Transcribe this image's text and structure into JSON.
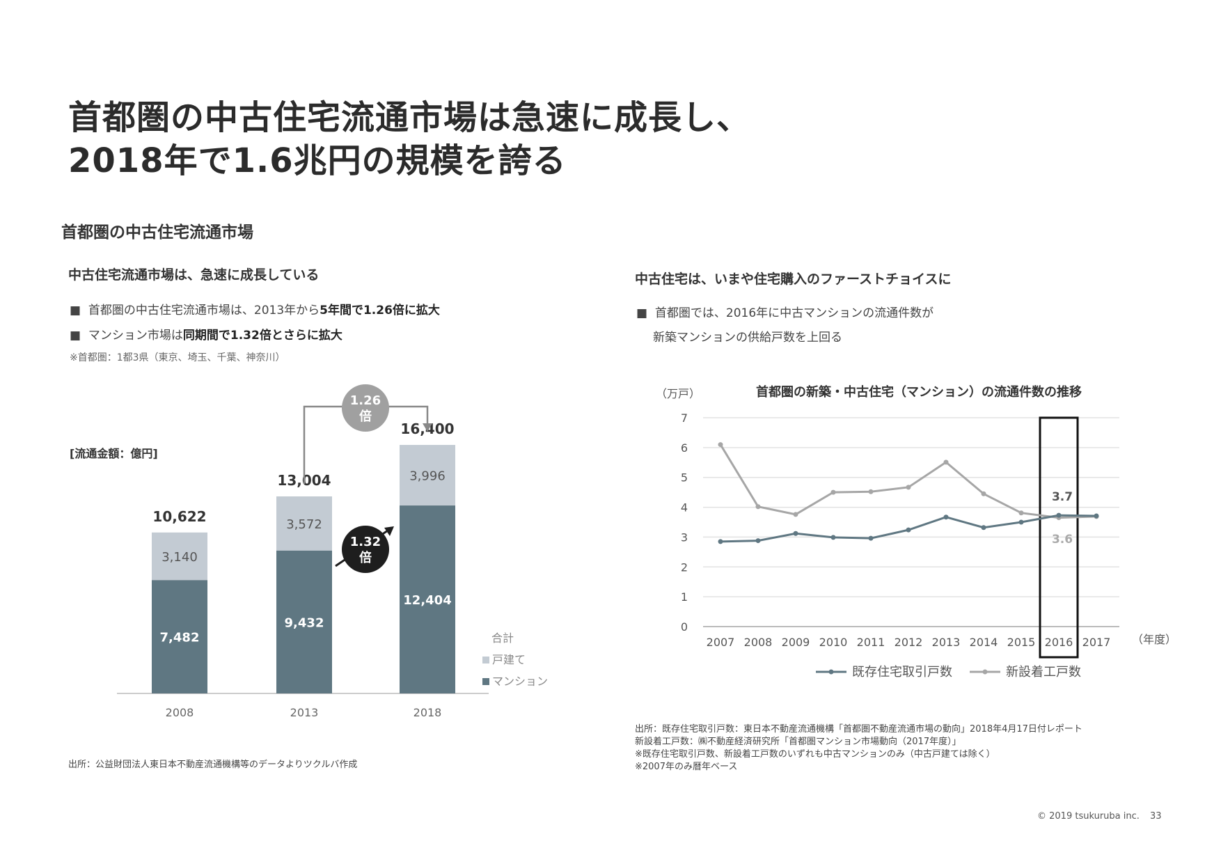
{
  "title": {
    "line1": "首都圏の中古住宅流通市場は急速に成長し、",
    "line2": "2018年で1.6兆円の規模を誇る"
  },
  "section_title": "首都圏の中古住宅流通市場",
  "left": {
    "heading": "中古住宅流通市場は、急速に成長している",
    "bullet1_pre": "首都圏の中古住宅流通市場は、2013年から",
    "bullet1_bold": "5年間で1.26倍に拡大",
    "bullet2_pre": "マンション市場は",
    "bullet2_bold": "同期間で1.32倍とさらに拡大",
    "note": "※首都圏：1都3県（東京、埼玉、千葉、神奈川）",
    "unit_label": "[流通金額：億円]",
    "badge_126_line1": "1.26",
    "badge_126_line2": "倍",
    "badge_132_line1": "1.32",
    "badge_132_line2": "倍",
    "legend_total": "合計",
    "legend_detached": "戸建て",
    "legend_mansion": "マンション",
    "source": "出所：公益財団法人東日本不動産流通機構等のデータよりツクルバ作成"
  },
  "right": {
    "heading": "中古住宅は、いまや住宅購入のファーストチョイスに",
    "bullet_line1": "首都圏では、2016年に中古マンションの流通件数が",
    "bullet_line2": "新築マンションの供給戸数を上回る",
    "y_unit": "（万戸）",
    "x_unit": "（年度）",
    "callout_existing": "3.7",
    "callout_new": "3.6",
    "sources": [
      "出所：既存住宅取引戸数：東日本不動産流通機構「首都圏不動産流通市場の動向」2018年4月17日付レポート",
      "新設着工戸数：㈱不動産経済研究所「首都圏マンション市場動向（2017年度）」",
      "※既存住宅取引戸数、新設着工戸数のいずれも中古マンションのみ（中古戸建ては除く）",
      "※2007年のみ暦年ベース"
    ]
  },
  "footer": {
    "copyright": "© 2019 tsukuruba inc.",
    "page": "33"
  },
  "colors": {
    "mansion": "#5f7782",
    "detached": "#c3cbd3",
    "existing_line": "#5f7782",
    "new_line": "#a6a6a6",
    "badge_gray": "#a0a0a0",
    "badge_dark": "#1e1e1e"
  },
  "chart_data": [
    {
      "type": "bar",
      "stacked": true,
      "title": "",
      "categories": [
        "2008",
        "2013",
        "2018"
      ],
      "series": [
        {
          "name": "マンション",
          "values": [
            7482,
            9432,
            12404
          ]
        },
        {
          "name": "戸建て",
          "values": [
            3140,
            3572,
            3996
          ]
        }
      ],
      "totals": [
        10622,
        13004,
        16400
      ],
      "totals_labels": [
        "10,622",
        "13,004",
        "16,400"
      ],
      "value_labels": {
        "マンション": [
          "7,482",
          "9,432",
          "12,404"
        ],
        "戸建て": [
          "3,140",
          "3,572",
          "3,996"
        ]
      },
      "ylabel": "[流通金額：億円]",
      "ylim": [
        0,
        17000
      ],
      "legend": "right"
    },
    {
      "type": "line",
      "title": "首都圏の新築・中古住宅（マンション）の流通件数の推移",
      "x": [
        "2007",
        "2008",
        "2009",
        "2010",
        "2011",
        "2012",
        "2013",
        "2014",
        "2015",
        "2016",
        "2017"
      ],
      "series": [
        {
          "name": "既存住宅取引戸数",
          "values": [
            2.85,
            2.88,
            3.12,
            2.99,
            2.96,
            3.24,
            3.67,
            3.32,
            3.5,
            3.73,
            3.71
          ]
        },
        {
          "name": "新設着工戸数",
          "values": [
            6.1,
            4.02,
            3.76,
            4.5,
            4.52,
            4.67,
            5.51,
            4.45,
            3.81,
            3.65,
            3.69
          ]
        }
      ],
      "xlabel": "（年度）",
      "ylabel": "（万戸）",
      "ylim": [
        0,
        7
      ],
      "yticks": [
        0,
        1,
        2,
        3,
        4,
        5,
        6,
        7
      ],
      "grid": true,
      "legend": "bottom",
      "highlight_x": "2016"
    }
  ]
}
